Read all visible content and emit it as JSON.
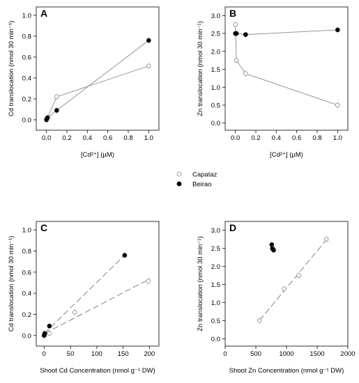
{
  "chart_data": [
    {
      "panel": "A",
      "type": "scatter",
      "xlabel": "[Cd²⁺] (µM)",
      "ylabel": "Cd translocation (nmol 30 min⁻¹)",
      "xlim": [
        -0.1,
        1.1
      ],
      "ylim": [
        -0.1,
        1.08
      ],
      "xticks": [
        0.0,
        0.2,
        0.4,
        0.6,
        0.8,
        1.0
      ],
      "yticks": [
        0.0,
        0.2,
        0.4,
        0.6,
        0.8,
        1.0
      ],
      "tick_format": "1dp",
      "connect": "solid",
      "series": [
        {
          "name": "Capataz",
          "marker": "open",
          "x": [
            0,
            0.01,
            0.1,
            1.0
          ],
          "y": [
            0.005,
            0.02,
            0.22,
            0.515
          ]
        },
        {
          "name": "Beirao",
          "marker": "filled",
          "x": [
            0,
            0.01,
            0.1,
            1.0
          ],
          "y": [
            0.0,
            0.02,
            0.09,
            0.76
          ]
        }
      ]
    },
    {
      "panel": "B",
      "type": "scatter",
      "xlabel": "[Cd²⁺] (µM)",
      "ylabel": "Zn translocation (nmol 30 min⁻¹)",
      "xlim": [
        -0.1,
        1.1
      ],
      "ylim": [
        -0.2,
        3.24
      ],
      "xticks": [
        0.0,
        0.2,
        0.4,
        0.6,
        0.8,
        1.0
      ],
      "yticks": [
        0.0,
        0.5,
        1.0,
        1.5,
        2.0,
        2.5,
        3.0
      ],
      "tick_format": "1dp",
      "connect": "solid",
      "series": [
        {
          "name": "Capataz",
          "marker": "open",
          "x": [
            0,
            0.01,
            0.1,
            1.0
          ],
          "y": [
            2.75,
            1.75,
            1.38,
            0.5
          ]
        },
        {
          "name": "Beirao",
          "marker": "filled",
          "x": [
            0,
            0.01,
            0.1,
            1.0
          ],
          "y": [
            2.5,
            2.5,
            2.47,
            2.6
          ]
        }
      ]
    },
    {
      "panel": "C",
      "type": "scatter",
      "xlabel": "Shoot Cd Concentration (nmol g⁻¹ DW)",
      "ylabel": "Cd translocation (nmol 30 min⁻¹)",
      "xlim": [
        -15,
        218
      ],
      "ylim": [
        -0.1,
        1.08
      ],
      "xticks": [
        0,
        50,
        100,
        150,
        200
      ],
      "yticks": [
        0.0,
        0.2,
        0.4,
        0.6,
        0.8,
        1.0
      ],
      "tick_format_x": "int",
      "tick_format_y": "1dp",
      "connect": "dashed-regression",
      "series": [
        {
          "name": "Capataz",
          "marker": "open",
          "x": [
            1,
            10,
            58,
            198
          ],
          "y": [
            0.005,
            0.02,
            0.22,
            0.515
          ]
        },
        {
          "name": "Beirao",
          "marker": "filled",
          "x": [
            0,
            1,
            10,
            153
          ],
          "y": [
            0.0,
            0.02,
            0.09,
            0.76
          ]
        }
      ]
    },
    {
      "panel": "D",
      "type": "scatter",
      "xlabel": "Shoot Zn Concentration (nmol g⁻¹ DW)",
      "ylabel": "Zn translocation (nmol 30 min⁻¹)",
      "xlim": [
        0,
        2000
      ],
      "ylim": [
        -0.2,
        3.24
      ],
      "xticks": [
        0,
        500,
        1000,
        1500,
        2000
      ],
      "yticks": [
        0.0,
        0.5,
        1.0,
        1.5,
        2.0,
        2.5,
        3.0
      ],
      "tick_format_x": "int",
      "tick_format_y": "1dp",
      "connect": "dashed-regression-first",
      "series": [
        {
          "name": "Capataz",
          "marker": "open",
          "x": [
            560,
            960,
            1200,
            1650
          ],
          "y": [
            0.5,
            1.38,
            1.75,
            2.75
          ]
        },
        {
          "name": "Beirao",
          "marker": "filled",
          "x": [
            760,
            770,
            780,
            790
          ],
          "y": [
            2.6,
            2.5,
            2.47,
            2.45
          ]
        }
      ]
    }
  ],
  "legend": [
    {
      "name": "Capataz",
      "marker": "open"
    },
    {
      "name": "Beirao",
      "marker": "filled"
    }
  ]
}
